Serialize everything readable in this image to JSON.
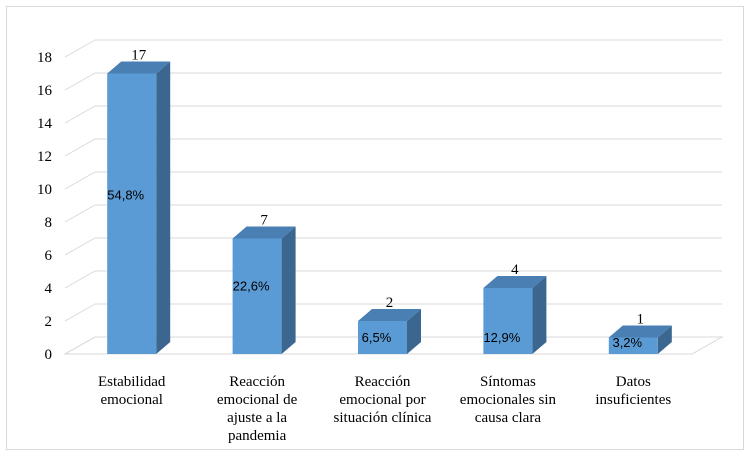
{
  "chart_data": {
    "type": "bar",
    "style": "3d-column",
    "categories": [
      [
        "Estabilidad",
        "emocional"
      ],
      [
        "Reacción",
        "emocional de",
        "ajuste a la",
        "pandemia"
      ],
      [
        "Reacción",
        "emocional por",
        "situación clínica"
      ],
      [
        "Síntomas",
        "emocionales sin",
        "causa clara"
      ],
      [
        "Datos",
        "insuficientes"
      ]
    ],
    "values": [
      17,
      7,
      2,
      4,
      1
    ],
    "percent_labels": [
      "54,8%",
      "22,6%",
      "6,5%",
      "12,9%",
      "3,2%"
    ],
    "value_labels": [
      "17",
      "7",
      "2",
      "4",
      "1"
    ],
    "ylim": [
      0,
      18
    ],
    "yticks": [
      "0",
      "2",
      "4",
      "6",
      "8",
      "10",
      "12",
      "14",
      "16",
      "18"
    ],
    "grid": true,
    "legend": "none",
    "colors": {
      "bar_front": "#5b9bd5",
      "bar_side": "#3a6690",
      "bar_top": "#4a7fb3",
      "grid": "#d9d9d9"
    }
  }
}
